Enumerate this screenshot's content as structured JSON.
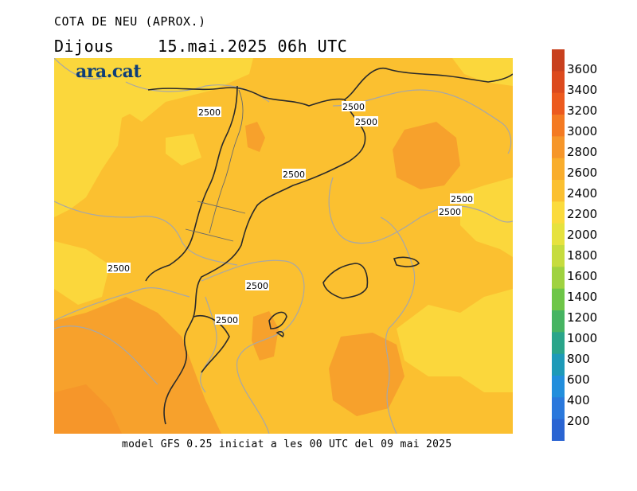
{
  "header": {
    "title": "COTA DE NEU (APROX.)",
    "day": "Dijous",
    "datetime": "15.mai.2025 06h UTC"
  },
  "logo": {
    "text": "ara.cat"
  },
  "footer": {
    "text": "model GFS 0.25 iniciat a les 00 UTC del 09 mai 2025"
  },
  "colorbar": {
    "labels": [
      "3600",
      "3400",
      "3200",
      "3000",
      "2800",
      "2600",
      "2400",
      "2200",
      "2000",
      "1800",
      "1600",
      "1400",
      "1200",
      "1000",
      "800",
      "600",
      "400",
      "200"
    ],
    "colors": [
      "#c8401e",
      "#dc4a1e",
      "#ec5a1e",
      "#f47a22",
      "#f6962a",
      "#f9ad2c",
      "#fbc030",
      "#fbdb3c",
      "#e6e23e",
      "#c6dc3e",
      "#9fd240",
      "#6ec648",
      "#46b462",
      "#2aa58a",
      "#1e9ab8",
      "#228edc",
      "#2a78dc",
      "#2a64d2"
    ]
  },
  "map": {
    "contour_labels": [
      "2500",
      "2500",
      "2500",
      "2500",
      "2500",
      "2500",
      "2500",
      "2500",
      "2500"
    ],
    "fill_colors": {
      "base": "#fbc030",
      "light": "#fbd73c",
      "dark": "#f7a12c",
      "darker": "#f6962a"
    }
  }
}
